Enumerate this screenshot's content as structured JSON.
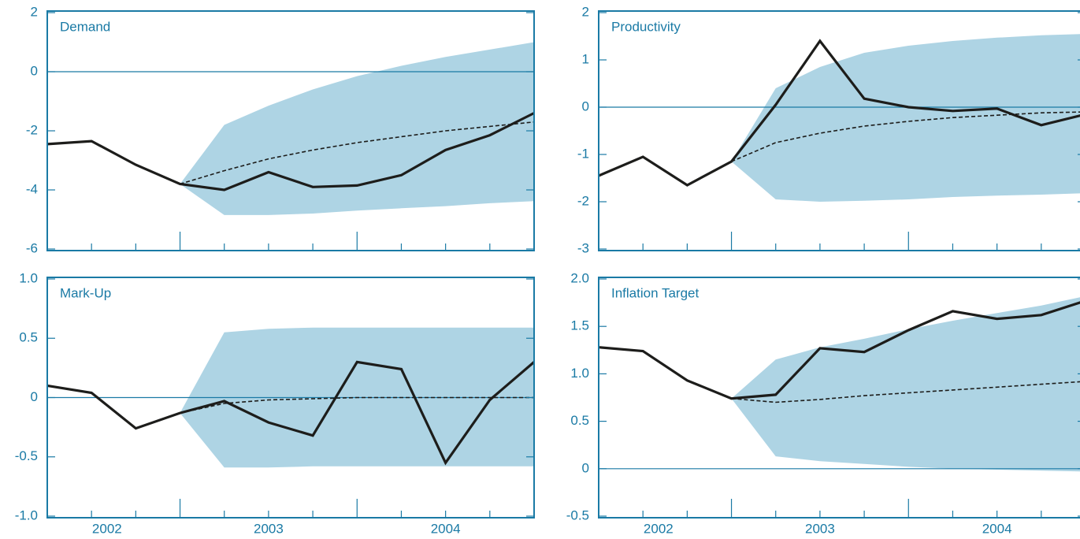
{
  "chart_data": [
    {
      "type": "line",
      "title": "Demand",
      "categories": [
        null,
        null,
        null,
        null,
        null,
        null,
        null,
        null,
        null,
        null,
        null,
        null
      ],
      "ylim": [
        -6,
        2
      ],
      "yticks": [
        -6,
        -4,
        -2,
        0,
        2
      ],
      "band": {
        "color": "#aed4e4",
        "upper": [
          null,
          null,
          null,
          -3.8,
          -1.8,
          -1.15,
          -0.6,
          -0.15,
          0.2,
          0.5,
          0.75,
          1.0
        ],
        "lower": [
          null,
          null,
          null,
          -3.8,
          -4.85,
          -4.85,
          -4.8,
          -4.7,
          -4.62,
          -4.55,
          -4.45,
          -4.38
        ]
      },
      "series": [
        {
          "color": "#1d1d1b",
          "style": "solid",
          "values": [
            -2.45,
            -2.35,
            -3.15,
            -3.8,
            -4.0,
            -3.4,
            -3.9,
            -3.85,
            -3.5,
            -2.65,
            -2.15,
            -1.4
          ]
        },
        {
          "color": "#1d1d1b",
          "style": "dashed",
          "values": [
            null,
            null,
            null,
            -3.8,
            -3.35,
            -2.95,
            -2.65,
            -2.4,
            -2.2,
            -2.0,
            -1.85,
            -1.7
          ]
        }
      ]
    },
    {
      "type": "line",
      "title": "Productivity",
      "categories": [
        null,
        null,
        null,
        null,
        null,
        null,
        null,
        null,
        null,
        null,
        null,
        null
      ],
      "ylim": [
        -3,
        2
      ],
      "yticks": [
        -3,
        -2,
        -1,
        0,
        1,
        2
      ],
      "band": {
        "color": "#aed4e4",
        "upper": [
          null,
          null,
          null,
          -1.15,
          0.4,
          0.85,
          1.15,
          1.3,
          1.4,
          1.47,
          1.52,
          1.55
        ],
        "lower": [
          null,
          null,
          null,
          -1.15,
          -1.95,
          -2.0,
          -1.98,
          -1.95,
          -1.9,
          -1.87,
          -1.85,
          -1.82
        ]
      },
      "series": [
        {
          "color": "#1d1d1b",
          "style": "solid",
          "values": [
            -1.45,
            -1.05,
            -1.65,
            -1.15,
            0.05,
            1.4,
            0.18,
            0.0,
            -0.08,
            -0.03,
            -0.38,
            -0.15
          ]
        },
        {
          "color": "#1d1d1b",
          "style": "dashed",
          "values": [
            null,
            null,
            null,
            -1.15,
            -0.75,
            -0.55,
            -0.4,
            -0.3,
            -0.22,
            -0.17,
            -0.12,
            -0.1
          ]
        }
      ]
    },
    {
      "type": "line",
      "title": "Mark-Up",
      "categories": [
        null,
        null,
        null,
        null,
        null,
        null,
        null,
        null,
        null,
        null,
        null,
        null
      ],
      "x_labels": [
        "2002",
        "2003",
        "2004"
      ],
      "ylim": [
        -1,
        1
      ],
      "yticks": [
        {
          "value": -1,
          "label": "-1.0"
        },
        -0.5,
        0,
        0.5,
        {
          "value": 1,
          "label": "1.0"
        }
      ],
      "band": {
        "color": "#aed4e4",
        "upper": [
          null,
          null,
          null,
          -0.13,
          0.55,
          0.58,
          0.59,
          0.59,
          0.59,
          0.59,
          0.59,
          0.59
        ],
        "lower": [
          null,
          null,
          null,
          -0.13,
          -0.59,
          -0.59,
          -0.58,
          -0.58,
          -0.58,
          -0.58,
          -0.58,
          -0.58
        ]
      },
      "series": [
        {
          "color": "#1d1d1b",
          "style": "solid",
          "values": [
            0.1,
            0.04,
            -0.26,
            -0.13,
            -0.03,
            -0.21,
            -0.32,
            0.3,
            0.24,
            -0.55,
            -0.02,
            0.3
          ]
        },
        {
          "color": "#1d1d1b",
          "style": "dashed",
          "values": [
            null,
            null,
            null,
            -0.13,
            -0.05,
            -0.02,
            -0.01,
            0,
            0,
            0,
            0,
            0
          ]
        }
      ]
    },
    {
      "type": "line",
      "title": "Inflation Target",
      "categories": [
        null,
        null,
        null,
        null,
        null,
        null,
        null,
        null,
        null,
        null,
        null,
        null
      ],
      "x_labels": [
        "2002",
        "2003",
        "2004"
      ],
      "ylim": [
        -0.5,
        2
      ],
      "yticks": [
        -0.5,
        0,
        0.5,
        {
          "value": 1,
          "label": "1.0"
        },
        1.5,
        {
          "value": 2,
          "label": "2.0"
        }
      ],
      "band": {
        "color": "#aed4e4",
        "upper": [
          null,
          null,
          null,
          0.74,
          1.15,
          1.28,
          1.37,
          1.47,
          1.56,
          1.64,
          1.72,
          1.82
        ],
        "lower": [
          null,
          null,
          null,
          0.74,
          0.13,
          0.08,
          0.05,
          0.02,
          0.0,
          -0.01,
          -0.02,
          -0.03
        ]
      },
      "series": [
        {
          "color": "#1d1d1b",
          "style": "solid",
          "values": [
            1.28,
            1.24,
            0.93,
            0.74,
            0.78,
            1.27,
            1.23,
            1.46,
            1.66,
            1.58,
            1.62,
            1.77
          ]
        },
        {
          "color": "#1d1d1b",
          "style": "dashed",
          "values": [
            null,
            null,
            null,
            0.74,
            0.7,
            0.73,
            0.77,
            0.8,
            0.83,
            0.86,
            0.89,
            0.92
          ]
        }
      ]
    }
  ]
}
